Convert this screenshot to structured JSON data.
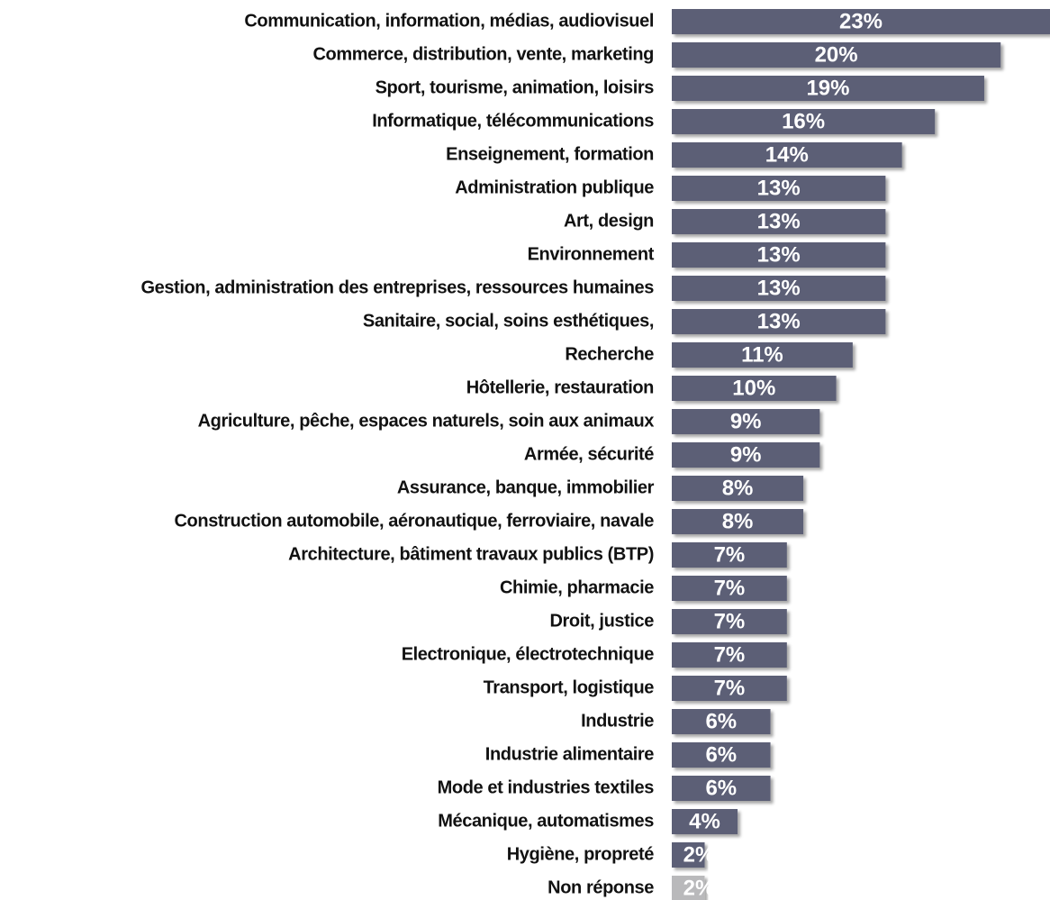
{
  "chart_data": {
    "type": "barh",
    "categories": [
      "Communication, information, médias, audiovisuel",
      "Commerce, distribution, vente, marketing",
      "Sport, tourisme, animation, loisirs",
      "Informatique, télécommunications",
      "Enseignement, formation",
      "Administration publique",
      "Art, design",
      "Environnement",
      "Gestion, administration des entreprises, ressources humaines",
      "Sanitaire, social, soins esthétiques,",
      "Recherche",
      "Hôtellerie, restauration",
      "Agriculture, pêche, espaces naturels, soin aux animaux",
      "Armée, sécurité",
      "Assurance, banque, immobilier",
      "Construction automobile, aéronautique, ferroviaire, navale",
      "Architecture, bâtiment travaux publics (BTP)",
      "Chimie, pharmacie",
      "Droit, justice",
      "Electronique, électrotechnique",
      "Transport, logistique",
      "Industrie",
      "Industrie alimentaire",
      "Mode et industries textiles",
      "Mécanique, automatismes",
      "Hygiène, propreté",
      "Non réponse"
    ],
    "values": [
      23,
      20,
      19,
      16,
      14,
      13,
      13,
      13,
      13,
      13,
      11,
      10,
      9,
      9,
      8,
      8,
      7,
      7,
      7,
      7,
      7,
      6,
      6,
      6,
      4,
      2,
      2
    ],
    "value_labels": [
      "23%",
      "20%",
      "19%",
      "16%",
      "14%",
      "13%",
      "13%",
      "13%",
      "13%",
      "13%",
      "11%",
      "10%",
      "9%",
      "9%",
      "8%",
      "8%",
      "7%",
      "7%",
      "7%",
      "7%",
      "7%",
      "6%",
      "6%",
      "6%",
      "4%",
      "2%",
      "2%"
    ],
    "colors": [
      "#5b5f76",
      "#5b5f76",
      "#5b5f76",
      "#5b5f76",
      "#5b5f76",
      "#5b5f76",
      "#5b5f76",
      "#5b5f76",
      "#5b5f76",
      "#5b5f76",
      "#5b5f76",
      "#5b5f76",
      "#5b5f76",
      "#5b5f76",
      "#5b5f76",
      "#5b5f76",
      "#5b5f76",
      "#5b5f76",
      "#5b5f76",
      "#5b5f76",
      "#5b5f76",
      "#5b5f76",
      "#5b5f76",
      "#5b5f76",
      "#5b5f76",
      "#5b5f76",
      "#b9b9bb"
    ]
  }
}
